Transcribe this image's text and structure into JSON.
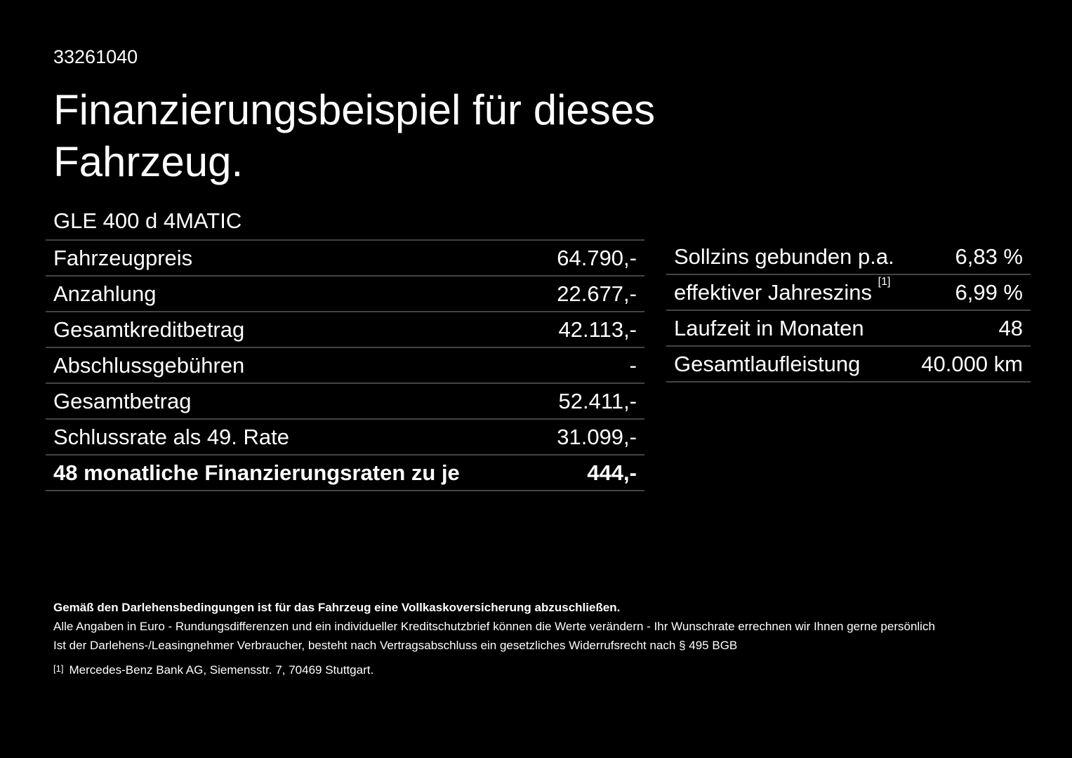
{
  "header": {
    "id": "33261040",
    "title_line1": "Finanzierungsbeispiel für dieses",
    "title_line2": "Fahrzeug."
  },
  "model": "GLE 400 d 4MATIC",
  "left_table": {
    "rows": [
      [
        "Fahrzeugpreis",
        "64.790,-"
      ],
      [
        "Anzahlung",
        "22.677,-"
      ],
      [
        "Gesamtkreditbetrag",
        "42.113,-"
      ],
      [
        "Abschlussgebühren",
        "-"
      ],
      [
        "Gesamtbetrag",
        "52.411,-"
      ],
      [
        "Schlussrate als 49. Rate",
        "31.099,-"
      ],
      [
        "48 monatliche Finanzierungsraten zu je",
        "444,-"
      ]
    ]
  },
  "right_table": {
    "rows": [
      [
        "Sollzins gebunden p.a.",
        "6,83 %"
      ],
      [
        "effektiver Jahreszins",
        "6,99 %"
      ],
      [
        "Laufzeit in Monaten",
        "48"
      ],
      [
        "Gesamtlaufleistung",
        "40.000 km"
      ]
    ],
    "footnote_ref": "[1]"
  },
  "footer": {
    "bold": "Gemäß den Darlehensbedingungen ist für das Fahrzeug eine Vollkaskoversicherung abzuschließen.",
    "line1": "Alle Angaben in Euro - Rundungsdifferenzen und ein individueller Kreditschutzbrief können die Werte verändern - Ihr Wunschrate errechnen wir Ihnen gerne persönlich",
    "line2": "Ist der Darlehens-/Leasingnehmer Verbraucher, besteht nach Vertragsabschluss ein gesetzliches Widerrufsrecht nach § 495 BGB",
    "footnote_mark": "[1]",
    "footnote_text": "Mercedes-Benz Bank AG, Siemensstr. 7, 70469 Stuttgart."
  }
}
